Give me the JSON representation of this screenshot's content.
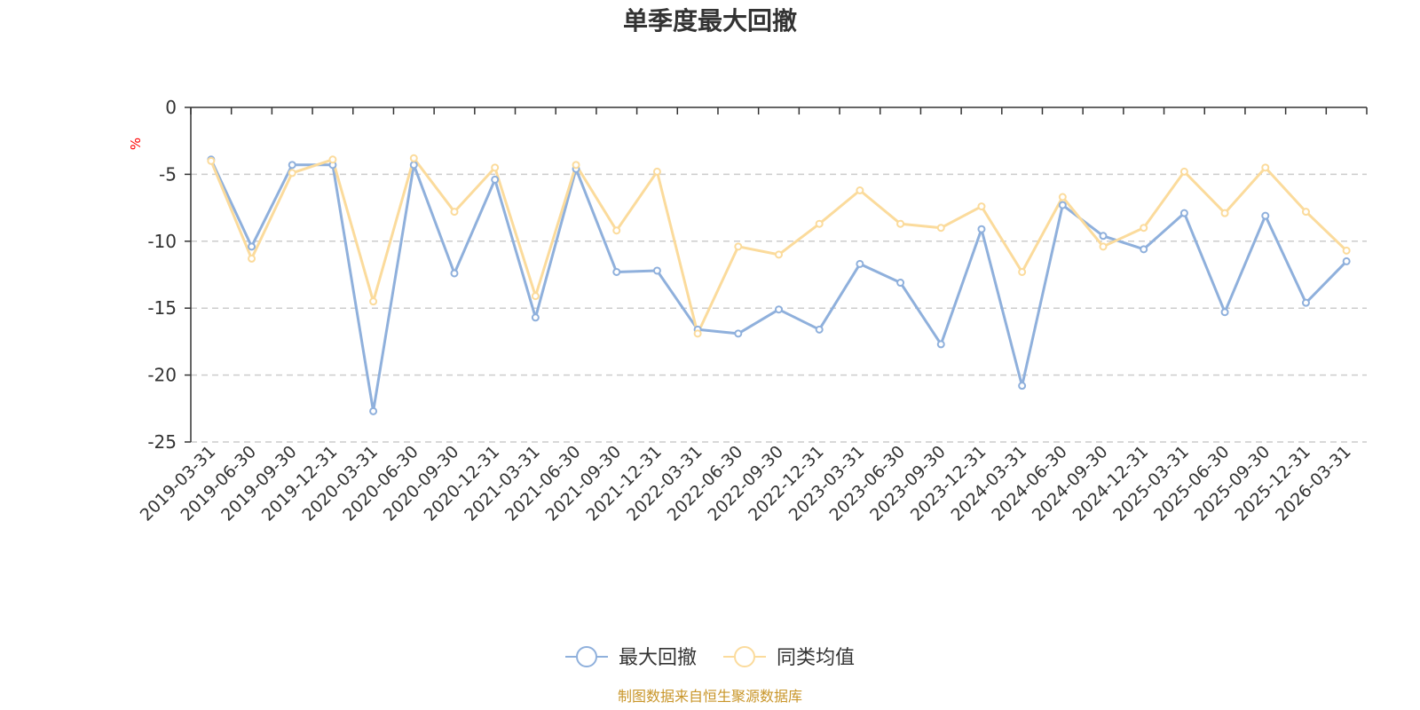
{
  "chart_data": {
    "type": "line",
    "title": "单季度最大回撤",
    "ylabel": "%",
    "ylim": [
      -25,
      0
    ],
    "yticks": [
      0,
      -5,
      -10,
      -15,
      -20,
      -25
    ],
    "grid": true,
    "legend_position": "bottom-center",
    "x": [
      "2019-03-31",
      "2019-06-30",
      "2019-09-30",
      "2019-12-31",
      "2020-03-31",
      "2020-06-30",
      "2020-09-30",
      "2020-12-31",
      "2021-03-31",
      "2021-06-30",
      "2021-09-30",
      "2021-12-31",
      "2022-03-31",
      "2022-06-30",
      "2022-09-30",
      "2022-12-31",
      "2023-03-31",
      "2023-06-30",
      "2023-09-30",
      "2023-12-31",
      "2024-03-31",
      "2024-06-30",
      "2024-09-30",
      "2024-12-31",
      "2025-03-31",
      "2025-06-30",
      "2025-09-30",
      "2025-12-31",
      "2026-03-31"
    ],
    "series": [
      {
        "name": "最大回撤",
        "color": "#8fb0dc",
        "values": [
          -3.9,
          -10.4,
          -4.3,
          -4.3,
          -22.7,
          -4.3,
          -12.4,
          -5.4,
          -15.7,
          -4.6,
          -12.3,
          -12.2,
          -16.6,
          -16.9,
          -15.1,
          -16.6,
          -11.7,
          -13.1,
          -17.7,
          -9.1,
          -20.8,
          -7.3,
          -9.6,
          -10.6,
          -7.9,
          -15.3,
          -8.1,
          -14.6,
          -11.5
        ]
      },
      {
        "name": "同类均值",
        "color": "#fbdb9c",
        "values": [
          -4.0,
          -11.3,
          -4.9,
          -3.9,
          -14.5,
          -3.8,
          -7.8,
          -4.5,
          -14.1,
          -4.3,
          -9.2,
          -4.8,
          -16.9,
          -10.4,
          -11.0,
          -8.7,
          -6.2,
          -8.7,
          -9.0,
          -7.4,
          -12.3,
          -6.7,
          -10.4,
          -9.0,
          -4.8,
          -7.9,
          -4.5,
          -7.8,
          -10.7
        ]
      }
    ]
  },
  "source_note": "制图数据来自恒生聚源数据库"
}
